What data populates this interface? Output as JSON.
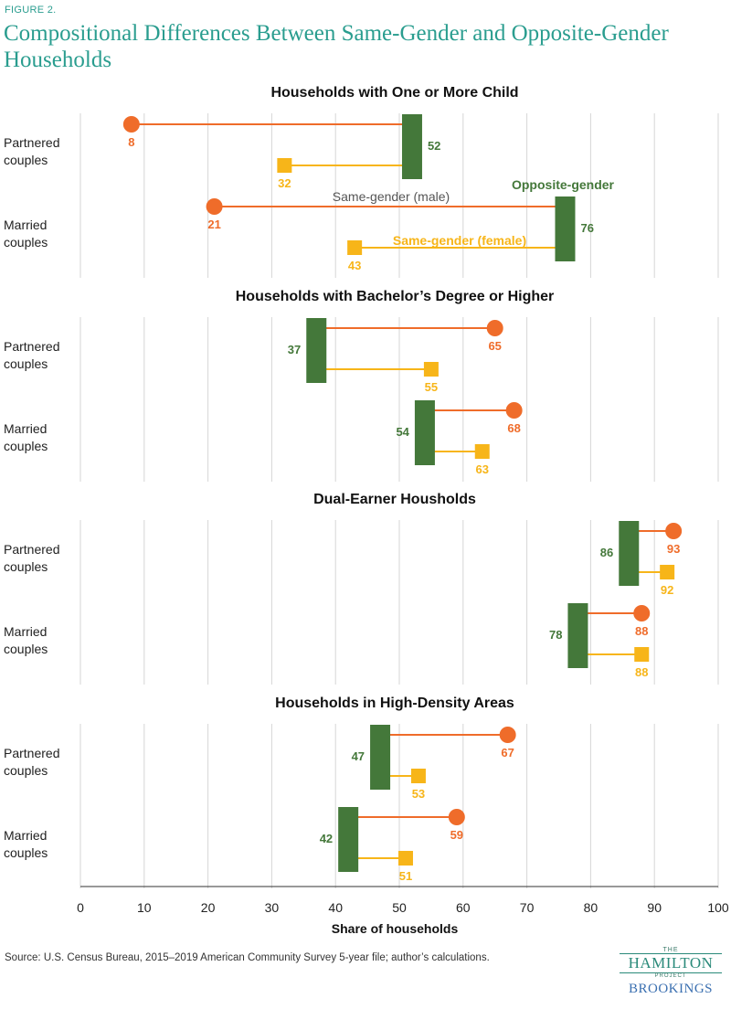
{
  "figure_label": "FIGURE 2.",
  "title": "Compositional Differences Between Same-Gender and Opposite-Gender Households",
  "source": "Source: U.S. Census Bureau, 2015–2019 American Community Survey 5-year file; author’s calculations.",
  "logo": {
    "the": "THE",
    "hamilton": "HAMILTON",
    "project": "PROJECT",
    "brookings": "BROOKINGS"
  },
  "colors": {
    "opposite": "#44783a",
    "male": "#ef6c2a",
    "female": "#f7b519",
    "title": "#2a9d8f",
    "grid": "#d6d6d6"
  },
  "chart_data": {
    "type": "dot",
    "xlabel": "Share of households",
    "xlim": [
      0,
      100
    ],
    "xticks": [
      0,
      10,
      20,
      30,
      40,
      50,
      60,
      70,
      80,
      90,
      100
    ],
    "series_labels": {
      "male": "Same-gender (male)",
      "female": "Same-gender (female)",
      "opposite": "Opposite-gender"
    },
    "panels": [
      {
        "title": "Households with One or More Child",
        "rows": [
          {
            "label": [
              "Partnered",
              "couples"
            ],
            "opposite": 52,
            "male": 8,
            "female": 32
          },
          {
            "label": [
              "Married",
              "couples"
            ],
            "opposite": 76,
            "male": 21,
            "female": 43
          }
        ]
      },
      {
        "title": "Households with Bachelor’s Degree or Higher",
        "rows": [
          {
            "label": [
              "Partnered",
              "couples"
            ],
            "opposite": 37,
            "male": 65,
            "female": 55
          },
          {
            "label": [
              "Married",
              "couples"
            ],
            "opposite": 54,
            "male": 68,
            "female": 63
          }
        ]
      },
      {
        "title": "Dual-Earner Housholds",
        "rows": [
          {
            "label": [
              "Partnered",
              "couples"
            ],
            "opposite": 86,
            "male": 93,
            "female": 92
          },
          {
            "label": [
              "Married",
              "couples"
            ],
            "opposite": 78,
            "male": 88,
            "female": 88
          }
        ]
      },
      {
        "title": "Households in High-Density Areas",
        "rows": [
          {
            "label": [
              "Partnered",
              "couples"
            ],
            "opposite": 47,
            "male": 67,
            "female": 53
          },
          {
            "label": [
              "Married",
              "couples"
            ],
            "opposite": 42,
            "male": 59,
            "female": 51
          }
        ]
      }
    ]
  }
}
